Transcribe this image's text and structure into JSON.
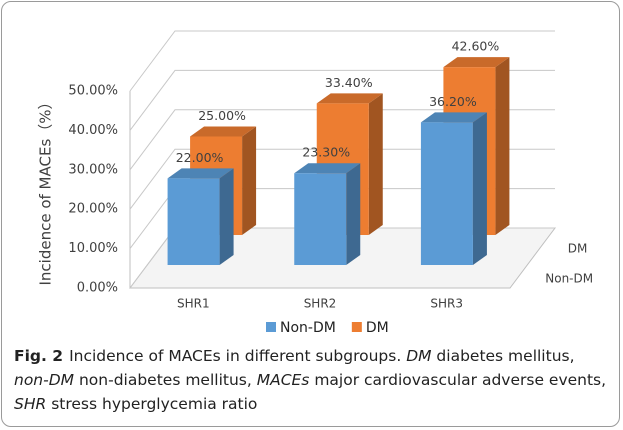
{
  "chart_data": {
    "type": "bar3d",
    "ylabel": "Incidence of MACEs（%）",
    "categories": [
      "SHR1",
      "SHR2",
      "SHR3"
    ],
    "series": [
      {
        "name": "Non-DM",
        "color": "#5b9bd5",
        "values": [
          22.0,
          23.3,
          36.2
        ],
        "value_labels": [
          "22.00%",
          "23.30%",
          "36.20%"
        ]
      },
      {
        "name": "DM",
        "color": "#ed7d31",
        "values": [
          25.0,
          33.4,
          42.6
        ],
        "value_labels": [
          "25.00%",
          "33.40%",
          "42.60%"
        ]
      }
    ],
    "ylim": [
      0,
      50
    ],
    "yticks": [
      {
        "value": 0,
        "label": "0.00%"
      },
      {
        "value": 10,
        "label": "10.00%"
      },
      {
        "value": 20,
        "label": "20.00%"
      },
      {
        "value": 30,
        "label": "30.00%"
      },
      {
        "value": 40,
        "label": "40.00%"
      },
      {
        "value": 50,
        "label": "50.00%"
      }
    ],
    "grid": true,
    "legend": "bottom"
  },
  "caption": {
    "label": "Fig. 2",
    "parts": [
      {
        "text": "Incidence of MACEs in different subgroups. ",
        "italic": false
      },
      {
        "text": "DM",
        "italic": true
      },
      {
        "text": " diabetes mellitus, ",
        "italic": false
      },
      {
        "text": "non-DM",
        "italic": true
      },
      {
        "text": " non-diabetes mellitus, ",
        "italic": false
      },
      {
        "text": "MACEs",
        "italic": true
      },
      {
        "text": " major cardiovascular adverse events, ",
        "italic": false
      },
      {
        "text": "SHR",
        "italic": true
      },
      {
        "text": " stress hyperglycemia ratio",
        "italic": false
      }
    ]
  }
}
